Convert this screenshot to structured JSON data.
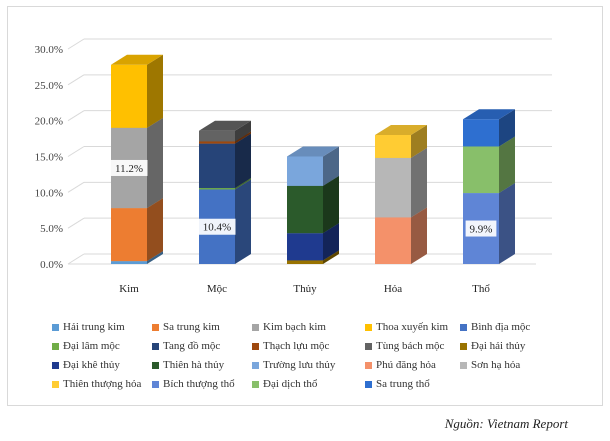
{
  "chart_data": {
    "type": "bar",
    "stacked": true,
    "style": "3d-column",
    "categories": [
      "Kim",
      "Mộc",
      "Thủy",
      "Hỏa",
      "Thổ"
    ],
    "ylim": [
      0,
      30
    ],
    "yticks": [
      "0.0%",
      "5.0%",
      "10.0%",
      "15.0%",
      "20.0%",
      "25.0%",
      "30.0%"
    ],
    "ytick_values": [
      0,
      5,
      10,
      15,
      20,
      25,
      30
    ],
    "gridlines": true,
    "legend_position": "bottom",
    "series": [
      {
        "name": "Hải trung kim",
        "color": "#5b9bd5",
        "values": [
          0.4,
          0,
          0,
          0,
          0
        ]
      },
      {
        "name": "Sa trung kim",
        "color": "#ed7d31",
        "values": [
          7.4,
          0,
          0,
          0,
          0
        ]
      },
      {
        "name": "Kim bạch kim",
        "color": "#a5a5a5",
        "values": [
          11.2,
          0,
          0,
          0,
          0
        ]
      },
      {
        "name": "Thoa xuyến kim",
        "color": "#ffc000",
        "values": [
          8.8,
          0,
          0,
          0,
          0
        ]
      },
      {
        "name": "Bình địa mộc",
        "color": "#4472c4",
        "values": [
          0,
          10.4,
          0,
          0,
          0
        ]
      },
      {
        "name": "Đại lâm mộc",
        "color": "#70ad47",
        "values": [
          0,
          0.2,
          0,
          0,
          0
        ]
      },
      {
        "name": "Tang đồ mộc",
        "color": "#264478",
        "values": [
          0,
          6.2,
          0,
          0,
          0
        ]
      },
      {
        "name": "Thạch lựu mộc",
        "color": "#9e480e",
        "values": [
          0,
          0.3,
          0,
          0,
          0
        ]
      },
      {
        "name": "Tùng bách mộc",
        "color": "#636363",
        "values": [
          0,
          1.5,
          0,
          0,
          0
        ]
      },
      {
        "name": "Đại hải thủy",
        "color": "#997300",
        "values": [
          0,
          0,
          0.5,
          0,
          0
        ]
      },
      {
        "name": "Đại khê thủy",
        "color": "#1f3a8f",
        "values": [
          0,
          0,
          3.8,
          0,
          0
        ]
      },
      {
        "name": "Thiên hà thủy",
        "color": "#2b5a2b",
        "values": [
          0,
          0,
          6.6,
          0,
          0
        ]
      },
      {
        "name": "Trường lưu thủy",
        "color": "#7aa6dc",
        "values": [
          0,
          0,
          4.1,
          0,
          0
        ]
      },
      {
        "name": "Phú đăng hỏa",
        "color": "#f4916a",
        "values": [
          0,
          0,
          0,
          6.5,
          0
        ]
      },
      {
        "name": "Sơn hạ hỏa",
        "color": "#b7b7b7",
        "values": [
          0,
          0,
          0,
          8.3,
          0
        ]
      },
      {
        "name": "Thiên thượng hỏa",
        "color": "#ffcc33",
        "values": [
          0,
          0,
          0,
          3.2,
          0
        ]
      },
      {
        "name": "Bích thượng thổ",
        "color": "#5f85d6",
        "values": [
          0,
          0,
          0,
          0,
          9.9
        ]
      },
      {
        "name": "Đại dịch thổ",
        "color": "#88bf6a",
        "values": [
          0,
          0,
          0,
          0,
          6.5
        ]
      },
      {
        "name": "Sa trung thổ",
        "color": "#2e6fd0",
        "values": [
          0,
          0,
          0,
          0,
          3.8
        ]
      }
    ],
    "data_labels": [
      {
        "category": "Kim",
        "series": "Kim bạch kim",
        "text": "11.2%"
      },
      {
        "category": "Mộc",
        "series": "Bình địa mộc",
        "text": "10.4%"
      },
      {
        "category": "Thổ",
        "series": "Bích thượng thổ",
        "text": "9.9%"
      }
    ]
  },
  "source_text": "Nguồn: Vietnam Report"
}
